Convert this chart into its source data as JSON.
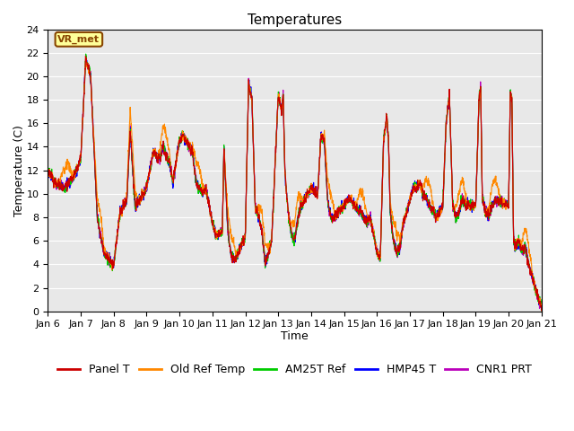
{
  "title": "Temperatures",
  "xlabel": "Time",
  "ylabel": "Temperature (C)",
  "ylim": [
    0,
    24
  ],
  "yticks": [
    0,
    2,
    4,
    6,
    8,
    10,
    12,
    14,
    16,
    18,
    20,
    22,
    24
  ],
  "xtick_labels": [
    "Jan 6",
    "Jan 7",
    "Jan 8",
    "Jan 9",
    "Jan 10",
    "Jan 11",
    "Jan 12",
    "Jan 13",
    "Jan 14",
    "Jan 15",
    "Jan 16",
    "Jan 17",
    "Jan 18",
    "Jan 19",
    "Jan 20",
    "Jan 21"
  ],
  "series_colors": {
    "Panel T": "#cc0000",
    "Old Ref Temp": "#ff8800",
    "AM25T Ref": "#00cc00",
    "HMP45 T": "#0000ff",
    "CNR1 PRT": "#bb00bb"
  },
  "bg_color": "#e8e8e8",
  "annotation_text": "VR_met",
  "annotation_bg": "#ffff99",
  "annotation_border": "#884400",
  "linewidth": 0.8,
  "grid_color": "#ffffff",
  "title_fontsize": 11,
  "axis_fontsize": 9,
  "tick_fontsize": 8,
  "legend_fontsize": 9,
  "figwidth": 6.4,
  "figheight": 4.8,
  "dpi": 100
}
